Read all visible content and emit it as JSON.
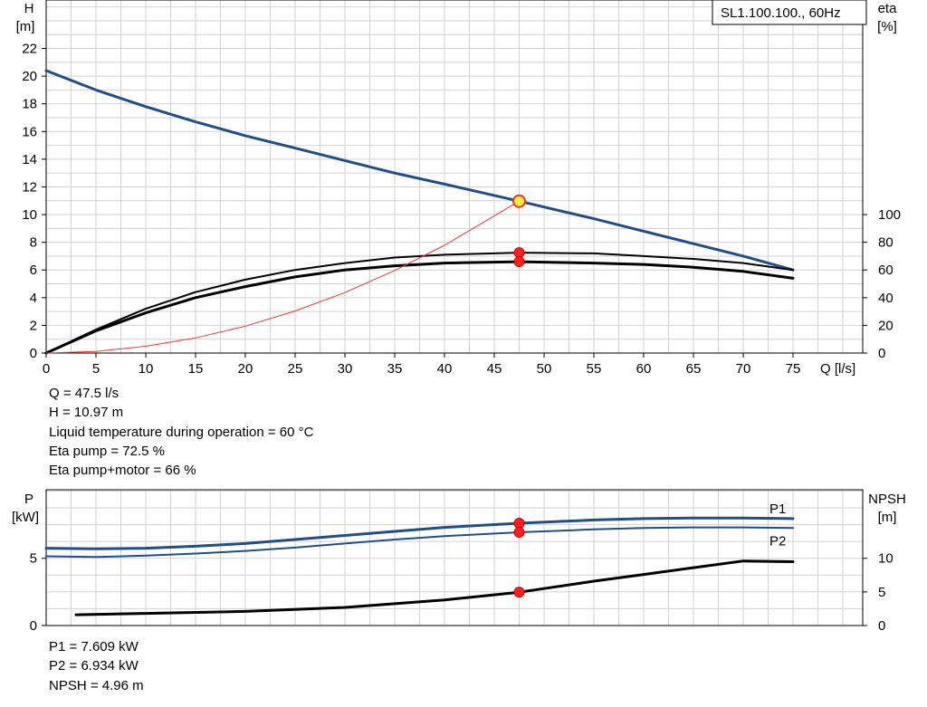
{
  "legend_box": "SL1.100.100., 60Hz",
  "chart_data": [
    {
      "type": "line",
      "title": "",
      "xlabel": "Q [l/s]",
      "ylabel_left": [
        "H",
        "[m]"
      ],
      "ylabel_right": [
        "eta",
        "[%]"
      ],
      "xlim": [
        0,
        82
      ],
      "ylim_left": [
        0,
        25.5
      ],
      "ylim_right": [
        0,
        255
      ],
      "x_ticks": [
        0,
        5,
        10,
        15,
        20,
        25,
        30,
        35,
        40,
        45,
        50,
        55,
        60,
        65,
        70,
        75
      ],
      "y_ticks_left": [
        0,
        2,
        4,
        6,
        8,
        10,
        12,
        14,
        16,
        18,
        20,
        22
      ],
      "y_ticks_right": [
        0,
        20,
        40,
        60,
        80,
        100
      ],
      "grid": true,
      "series": [
        {
          "axis": "left",
          "color": "#1f4e8c",
          "width": 3,
          "x": [
            0,
            5,
            10,
            15,
            20,
            25,
            30,
            35,
            40,
            47.5,
            55,
            60,
            65,
            70,
            75
          ],
          "y": [
            20.4,
            19.0,
            17.8,
            16.7,
            15.7,
            14.8,
            13.9,
            13.0,
            12.2,
            10.97,
            9.7,
            8.8,
            7.9,
            7.0,
            6.0
          ]
        },
        {
          "axis": "right",
          "color": "#000000",
          "width": 2,
          "x": [
            0,
            5,
            10,
            15,
            20,
            25,
            30,
            35,
            40,
            47.5,
            55,
            60,
            65,
            70,
            75
          ],
          "y": [
            0,
            17,
            32,
            44,
            53,
            60,
            65,
            69,
            71,
            72.5,
            72,
            70,
            68,
            65,
            60
          ]
        },
        {
          "axis": "right",
          "color": "#000000",
          "width": 3,
          "x": [
            0,
            5,
            10,
            15,
            20,
            25,
            30,
            35,
            40,
            47.5,
            55,
            60,
            65,
            70,
            75
          ],
          "y": [
            0,
            16,
            29,
            40,
            48,
            55,
            60,
            63,
            65,
            66,
            65,
            64,
            62,
            59,
            54
          ]
        },
        {
          "axis": "left",
          "color": "#ff3030",
          "width": 1,
          "x": [
            0,
            5,
            10,
            15,
            20,
            25,
            30,
            35,
            40,
            47.5
          ],
          "y": [
            0,
            0.12,
            0.49,
            1.09,
            1.94,
            3.04,
            4.37,
            5.96,
            7.78,
            10.97
          ]
        }
      ],
      "markers": [
        {
          "axis": "left",
          "x": 47.5,
          "y": 10.97,
          "style": "yellow"
        },
        {
          "axis": "right",
          "x": 47.5,
          "y": 72.5,
          "style": "red"
        },
        {
          "axis": "right",
          "x": 47.5,
          "y": 66,
          "style": "red"
        }
      ]
    },
    {
      "type": "line",
      "title": "",
      "xlabel": "",
      "ylabel_left": [
        "P",
        "[kW]"
      ],
      "ylabel_right": [
        "NPSH",
        "[m]"
      ],
      "xlim": [
        0,
        82
      ],
      "ylim_left": [
        0,
        10.1
      ],
      "ylim_right": [
        0,
        20.2
      ],
      "y_ticks_left": [
        0,
        5
      ],
      "y_ticks_right": [
        0,
        5,
        10
      ],
      "grid": true,
      "series": [
        {
          "name": "P1",
          "axis": "left",
          "color": "#1f4e8c",
          "width": 3,
          "x": [
            0,
            5,
            10,
            15,
            20,
            25,
            30,
            35,
            40,
            47.5,
            55,
            60,
            65,
            70,
            75
          ],
          "y": [
            5.75,
            5.7,
            5.75,
            5.9,
            6.1,
            6.4,
            6.7,
            7.0,
            7.3,
            7.609,
            7.85,
            7.95,
            8.0,
            8.0,
            7.95
          ]
        },
        {
          "name": "P2",
          "axis": "left",
          "color": "#1f4e8c",
          "width": 2,
          "x": [
            0,
            5,
            10,
            15,
            20,
            25,
            30,
            35,
            40,
            47.5,
            55,
            60,
            65,
            70,
            75
          ],
          "y": [
            5.15,
            5.1,
            5.2,
            5.35,
            5.55,
            5.8,
            6.1,
            6.4,
            6.65,
            6.934,
            7.15,
            7.25,
            7.3,
            7.3,
            7.25
          ]
        },
        {
          "axis": "right",
          "color": "#000000",
          "width": 3,
          "x": [
            3,
            10,
            20,
            30,
            40,
            47.5,
            55,
            60,
            65,
            70,
            75
          ],
          "y": [
            1.6,
            1.8,
            2.1,
            2.7,
            3.8,
            4.96,
            6.6,
            7.6,
            8.6,
            9.6,
            9.5
          ]
        }
      ],
      "markers": [
        {
          "axis": "left",
          "x": 47.5,
          "y": 7.609,
          "style": "red"
        },
        {
          "axis": "left",
          "x": 47.5,
          "y": 6.934,
          "style": "red"
        },
        {
          "axis": "right",
          "x": 47.5,
          "y": 4.96,
          "style": "red"
        }
      ]
    }
  ],
  "readout_top": [
    "Q = 47.5 l/s",
    "H = 10.97 m",
    "Liquid temperature during operation = 60 °C",
    "Eta pump = 72.5 %",
    "Eta pump+motor = 66 %"
  ],
  "readout_bottom": [
    "P1 = 7.609 kW",
    "P2 = 6.934 kW",
    "NPSH = 4.96 m"
  ]
}
